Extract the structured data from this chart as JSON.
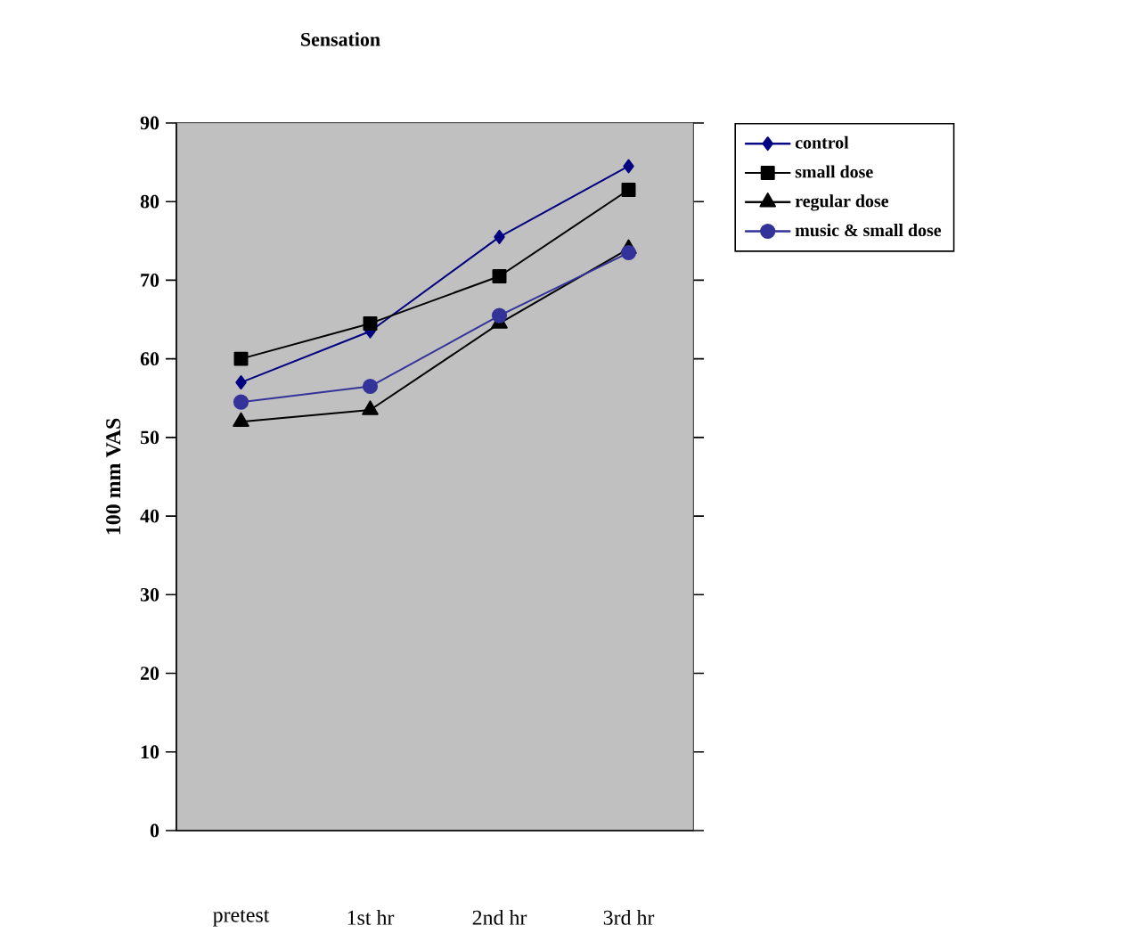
{
  "chart_data": {
    "type": "line",
    "title": "Sensation",
    "ylabel": "100 mm VAS",
    "categories": [
      "pretest",
      "1st hr",
      "2nd hr",
      "3rd hr"
    ],
    "series": [
      {
        "name": "control",
        "color": "#000080",
        "marker": "diamond",
        "values": [
          57,
          63.5,
          75.5,
          84.5
        ]
      },
      {
        "name": "small dose",
        "color": "#000000",
        "marker": "square",
        "values": [
          60,
          64.5,
          70.5,
          81.5
        ]
      },
      {
        "name": "regular dose",
        "color": "#000000",
        "marker": "triangle",
        "values": [
          52,
          53.5,
          64.5,
          74
        ]
      },
      {
        "name": "music &  small dose",
        "color": "#333399",
        "marker": "circle",
        "values": [
          54.5,
          56.5,
          65.5,
          73.5
        ]
      }
    ],
    "ylim": [
      0,
      90
    ],
    "yticks": [
      0,
      10,
      20,
      30,
      40,
      50,
      60,
      70,
      80,
      90
    ],
    "grid": false,
    "legend": "top right",
    "line_style": "solid"
  }
}
